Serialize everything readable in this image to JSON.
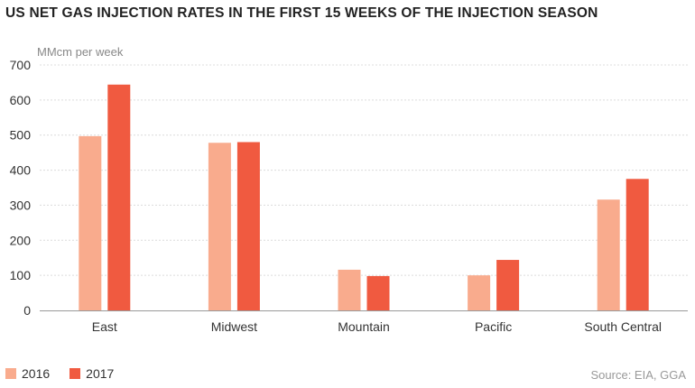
{
  "title": "US NET GAS INJECTION RATES IN THE FIRST 15 WEEKS OF THE INJECTION SEASON",
  "source": "Source: EIA, GGA",
  "colors": {
    "2016": "#f9ab8d",
    "2017": "#f05a40",
    "grid": "#dcdcdc",
    "axis": "#999999"
  },
  "chart_data": {
    "type": "bar",
    "ylabel": "MMcm per week",
    "xlabel": "",
    "ylim": [
      0,
      700
    ],
    "yticks": [
      0,
      100,
      200,
      300,
      400,
      500,
      600,
      700
    ],
    "grid": true,
    "legend_position": "bottom-left",
    "categories": [
      "East",
      "Midwest",
      "Mountain",
      "Pacific",
      "South Central"
    ],
    "series": [
      {
        "name": "2016",
        "values": [
          497,
          478,
          116,
          100,
          316
        ]
      },
      {
        "name": "2017",
        "values": [
          644,
          480,
          98,
          144,
          375
        ]
      }
    ]
  }
}
